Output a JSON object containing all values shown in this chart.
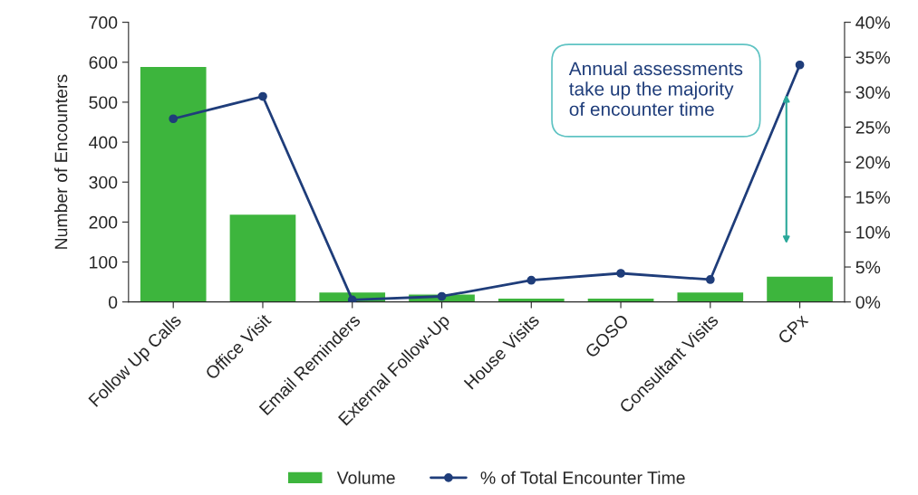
{
  "chart_data": {
    "type": "bar",
    "ylabel": "Number of Encounters",
    "categories": [
      "Follow Up Calls",
      "Office Visit",
      "Email Reminders",
      "External Follow-Up",
      "House Visits",
      "GOSO",
      "Consultant Visits",
      "CPx"
    ],
    "series": [
      {
        "name": "Volume",
        "color": "#3db53d",
        "values": [
          590,
          220,
          25,
          20,
          10,
          10,
          25,
          65
        ]
      },
      {
        "name": "% of Total Encounter Time",
        "type": "line",
        "axis": "y2",
        "color": "#1f3d7a",
        "values": [
          26.2,
          29.4,
          0.3,
          0.8,
          3.1,
          4.1,
          3.2,
          33.9
        ]
      }
    ],
    "ylim": [
      0,
      700
    ],
    "yticks": [
      0,
      100,
      200,
      300,
      400,
      500,
      600,
      700
    ],
    "y2lim": [
      0,
      40
    ],
    "y2ticks": [
      {
        "value": 0,
        "label": "0%"
      },
      {
        "value": 5,
        "label": "5%"
      },
      {
        "value": 10,
        "label": "10%"
      },
      {
        "value": 15,
        "label": "15%"
      },
      {
        "value": 20,
        "label": "20%"
      },
      {
        "value": 25,
        "label": "25%"
      },
      {
        "value": 30,
        "label": "30%"
      },
      {
        "value": 35,
        "label": "35%"
      },
      {
        "value": 40,
        "label": "40%"
      }
    ],
    "annotations": [
      "Annual assessments\ntake up the majority\nof encounter time"
    ],
    "marker": "circle",
    "line_style": "solid",
    "legend": "bottom",
    "grid": false
  }
}
